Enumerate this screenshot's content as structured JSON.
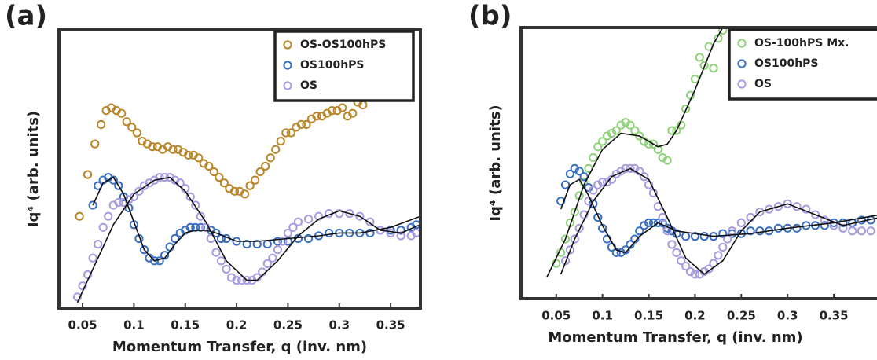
{
  "chart_data": [
    {
      "type": "scatter",
      "panel_label": "(a)",
      "xlabel": "Momentum Transfer, q (inv. nm)",
      "ylabel": "Iq⁴ (arb. units)",
      "xlim": [
        0.027,
        0.379
      ],
      "ylim": [
        0,
        100
      ],
      "xticks": [
        0.05,
        0.1,
        0.15,
        0.2,
        0.25,
        0.3,
        0.35
      ],
      "legend": "upper right",
      "series": [
        {
          "name": "OS-OS100hPS",
          "color": "#b8862b",
          "x": [
            0.047,
            0.055,
            0.062,
            0.068,
            0.073,
            0.078,
            0.083,
            0.088,
            0.093,
            0.098,
            0.103,
            0.108,
            0.113,
            0.118,
            0.123,
            0.128,
            0.133,
            0.138,
            0.143,
            0.148,
            0.153,
            0.158,
            0.163,
            0.168,
            0.173,
            0.178,
            0.183,
            0.188,
            0.193,
            0.198,
            0.203,
            0.208,
            0.213,
            0.218,
            0.223,
            0.228,
            0.233,
            0.238,
            0.243,
            0.248,
            0.253,
            0.258,
            0.263,
            0.268,
            0.273,
            0.278,
            0.283,
            0.288,
            0.293,
            0.298,
            0.303,
            0.308,
            0.313,
            0.318,
            0.323
          ],
          "values": [
            33,
            48,
            59,
            66,
            71,
            72,
            71,
            70,
            67,
            65,
            63,
            60,
            59,
            58,
            58,
            57,
            58,
            57,
            57,
            56,
            55,
            55,
            54,
            52,
            51,
            49,
            47,
            45,
            43,
            42,
            42,
            41,
            44,
            46,
            49,
            51,
            54,
            57,
            60,
            63,
            63,
            65,
            66,
            66,
            68,
            69,
            69,
            70,
            71,
            71,
            72,
            69,
            70,
            74,
            73
          ]
        },
        {
          "name": "OS100hPS",
          "color": "#3a6fc0",
          "x": [
            0.06,
            0.065,
            0.07,
            0.075,
            0.08,
            0.085,
            0.09,
            0.095,
            0.1,
            0.105,
            0.11,
            0.115,
            0.12,
            0.125,
            0.13,
            0.135,
            0.14,
            0.145,
            0.15,
            0.155,
            0.16,
            0.165,
            0.17,
            0.175,
            0.18,
            0.185,
            0.19,
            0.2,
            0.21,
            0.22,
            0.23,
            0.24,
            0.25,
            0.26,
            0.27,
            0.28,
            0.29,
            0.3,
            0.31,
            0.32,
            0.33,
            0.34,
            0.35,
            0.36,
            0.37,
            0.375
          ],
          "values": [
            37,
            44,
            46,
            47,
            46,
            44,
            40,
            36,
            30,
            25,
            21,
            18,
            17,
            17,
            19,
            22,
            25,
            27,
            28,
            29,
            29,
            29,
            29,
            28,
            27,
            25,
            25,
            24,
            23,
            23,
            23,
            24,
            24,
            25,
            25,
            26,
            27,
            27,
            27,
            27,
            27,
            28,
            28,
            28,
            29,
            30
          ]
        },
        {
          "name": "OS",
          "color": "#a99be0",
          "x": [
            0.045,
            0.05,
            0.055,
            0.06,
            0.065,
            0.07,
            0.075,
            0.08,
            0.085,
            0.09,
            0.095,
            0.1,
            0.105,
            0.11,
            0.115,
            0.12,
            0.125,
            0.13,
            0.135,
            0.14,
            0.145,
            0.15,
            0.155,
            0.16,
            0.165,
            0.17,
            0.175,
            0.18,
            0.185,
            0.19,
            0.195,
            0.2,
            0.205,
            0.21,
            0.215,
            0.22,
            0.225,
            0.23,
            0.235,
            0.24,
            0.245,
            0.25,
            0.255,
            0.26,
            0.27,
            0.28,
            0.29,
            0.3,
            0.31,
            0.32,
            0.33,
            0.34,
            0.35,
            0.36,
            0.37,
            0.375
          ],
          "values": [
            4,
            8,
            12,
            18,
            23,
            29,
            33,
            37,
            38,
            38,
            39,
            40,
            42,
            44,
            45,
            46,
            47,
            47,
            47,
            46,
            45,
            43,
            40,
            37,
            33,
            29,
            25,
            20,
            17,
            14,
            11,
            10,
            10,
            10,
            10,
            11,
            13,
            16,
            18,
            21,
            24,
            27,
            29,
            31,
            32,
            33,
            34,
            34,
            34,
            33,
            31,
            28,
            27,
            26,
            26,
            27
          ]
        }
      ],
      "fit_lines": [
        {
          "color": "#111111",
          "x": [
            0.06,
            0.07,
            0.08,
            0.09,
            0.1,
            0.11,
            0.12,
            0.13,
            0.14,
            0.15,
            0.16,
            0.17,
            0.18,
            0.2,
            0.22,
            0.25,
            0.28,
            0.3,
            0.32,
            0.35,
            0.379
          ],
          "values": [
            37,
            45,
            47,
            41,
            31,
            21,
            17,
            18,
            23,
            27,
            28,
            28,
            27,
            24,
            24,
            25,
            26,
            27,
            27,
            29,
            33
          ]
        },
        {
          "color": "#111111",
          "x": [
            0.045,
            0.06,
            0.08,
            0.1,
            0.12,
            0.135,
            0.15,
            0.17,
            0.19,
            0.21,
            0.22,
            0.24,
            0.26,
            0.28,
            0.3,
            0.32,
            0.34,
            0.36,
            0.379
          ],
          "values": [
            2,
            14,
            30,
            41,
            46,
            47,
            42,
            31,
            17,
            10,
            10,
            17,
            26,
            32,
            35,
            33,
            28,
            27,
            30
          ]
        }
      ]
    },
    {
      "type": "scatter",
      "panel_label": "(b)",
      "xlabel": "Momentum Transfer, q (inv. nm)",
      "ylabel": "Iq⁴ (arb. units)",
      "xlim": [
        0.012,
        0.4
      ],
      "ylim": [
        0,
        100
      ],
      "xticks": [
        0.05,
        0.1,
        0.15,
        0.2,
        0.25,
        0.3,
        0.35
      ],
      "legend": "upper right",
      "series": [
        {
          "name": "OS-100hPS Mx.",
          "color": "#8fd27a",
          "x": [
            0.05,
            0.055,
            0.06,
            0.065,
            0.07,
            0.075,
            0.08,
            0.085,
            0.09,
            0.095,
            0.1,
            0.105,
            0.11,
            0.115,
            0.12,
            0.125,
            0.13,
            0.135,
            0.14,
            0.145,
            0.15,
            0.155,
            0.16,
            0.165,
            0.17,
            0.175,
            0.18,
            0.185,
            0.19,
            0.195,
            0.2,
            0.205,
            0.21,
            0.215,
            0.22,
            0.225,
            0.23
          ],
          "values": [
            13,
            17,
            22,
            28,
            32,
            38,
            43,
            48,
            52,
            56,
            58,
            60,
            61,
            62,
            64,
            65,
            64,
            62,
            60,
            58,
            57,
            57,
            55,
            52,
            51,
            62,
            62,
            64,
            70,
            75,
            81,
            89,
            86,
            93,
            85,
            96,
            99
          ]
        },
        {
          "name": "OS100hPS",
          "color": "#3a6fc0",
          "x": [
            0.055,
            0.06,
            0.065,
            0.07,
            0.075,
            0.08,
            0.085,
            0.09,
            0.095,
            0.1,
            0.105,
            0.11,
            0.115,
            0.12,
            0.125,
            0.13,
            0.135,
            0.14,
            0.145,
            0.15,
            0.155,
            0.16,
            0.165,
            0.17,
            0.175,
            0.18,
            0.19,
            0.2,
            0.21,
            0.22,
            0.23,
            0.24,
            0.25,
            0.26,
            0.27,
            0.28,
            0.29,
            0.3,
            0.31,
            0.32,
            0.33,
            0.34,
            0.35,
            0.36,
            0.37,
            0.38,
            0.39
          ],
          "values": [
            36,
            42,
            46,
            48,
            47,
            45,
            41,
            35,
            30,
            26,
            22,
            19,
            17,
            17,
            18,
            20,
            22,
            25,
            27,
            28,
            28,
            28,
            28,
            26,
            25,
            24,
            23,
            23,
            23,
            23,
            24,
            24,
            24,
            25,
            25,
            25,
            26,
            26,
            26,
            27,
            27,
            27,
            28,
            28,
            28,
            29,
            29
          ]
        },
        {
          "name": "OS",
          "color": "#a99be0",
          "x": [
            0.06,
            0.065,
            0.07,
            0.075,
            0.08,
            0.085,
            0.09,
            0.095,
            0.1,
            0.105,
            0.11,
            0.115,
            0.12,
            0.125,
            0.13,
            0.135,
            0.14,
            0.145,
            0.15,
            0.155,
            0.16,
            0.165,
            0.17,
            0.175,
            0.18,
            0.185,
            0.19,
            0.195,
            0.2,
            0.205,
            0.21,
            0.215,
            0.22,
            0.225,
            0.23,
            0.235,
            0.24,
            0.25,
            0.26,
            0.27,
            0.28,
            0.29,
            0.3,
            0.31,
            0.32,
            0.33,
            0.34,
            0.35,
            0.36,
            0.37,
            0.38,
            0.39
          ],
          "values": [
            14,
            18,
            22,
            26,
            31,
            36,
            40,
            42,
            43,
            43,
            44,
            46,
            47,
            48,
            48,
            48,
            47,
            45,
            42,
            39,
            34,
            30,
            25,
            20,
            17,
            14,
            12,
            10,
            9,
            9,
            10,
            11,
            13,
            16,
            19,
            22,
            25,
            28,
            30,
            32,
            33,
            34,
            35,
            34,
            33,
            31,
            29,
            27,
            26,
            25,
            25,
            25
          ]
        }
      ],
      "fit_lines": [
        {
          "color": "#111111",
          "x": [
            0.04,
            0.06,
            0.08,
            0.1,
            0.12,
            0.14,
            0.16,
            0.17,
            0.18,
            0.2,
            0.22,
            0.23
          ],
          "values": [
            8,
            22,
            42,
            55,
            61,
            60,
            56,
            57,
            62,
            77,
            94,
            100
          ]
        },
        {
          "color": "#111111",
          "x": [
            0.055,
            0.065,
            0.075,
            0.085,
            0.1,
            0.115,
            0.125,
            0.14,
            0.16,
            0.18,
            0.22,
            0.26,
            0.3,
            0.35,
            0.4
          ],
          "values": [
            33,
            42,
            44,
            38,
            27,
            18,
            17,
            23,
            28,
            25,
            23,
            24,
            26,
            28,
            31
          ]
        },
        {
          "color": "#111111",
          "x": [
            0.055,
            0.07,
            0.09,
            0.11,
            0.13,
            0.15,
            0.17,
            0.19,
            0.21,
            0.23,
            0.25,
            0.27,
            0.3,
            0.33,
            0.36,
            0.4
          ],
          "values": [
            9,
            22,
            36,
            45,
            48,
            44,
            30,
            15,
            9,
            14,
            25,
            32,
            35,
            31,
            27,
            30
          ]
        }
      ]
    }
  ]
}
